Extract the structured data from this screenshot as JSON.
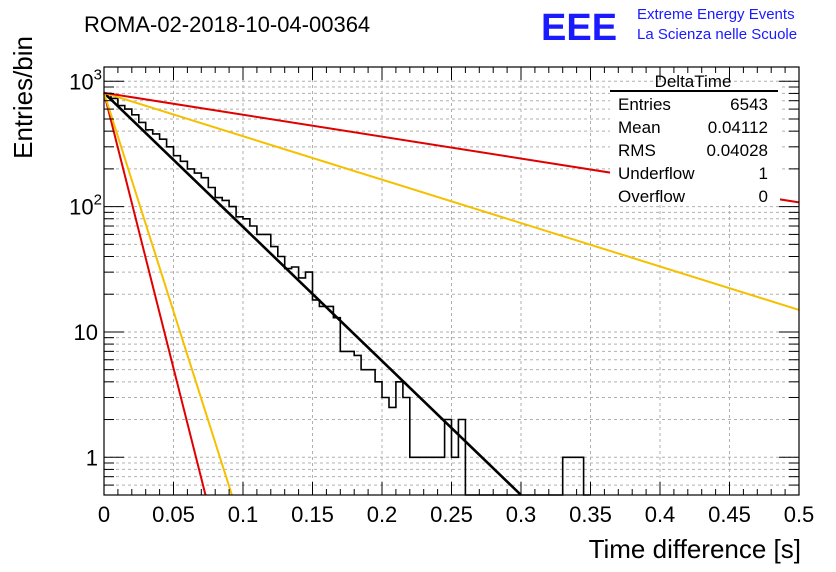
{
  "chart_data": {
    "type": "line",
    "title": "ROMA-02-2018-10-04-00364",
    "xlabel": "Time difference [s]",
    "ylabel": "Entries/bin",
    "xlim": [
      0,
      0.5
    ],
    "ylim": [
      0.5,
      1300
    ],
    "yscale": "log",
    "grid": true,
    "x_ticks": [
      "0",
      "0.05",
      "0.1",
      "0.15",
      "0.2",
      "0.25",
      "0.3",
      "0.35",
      "0.4",
      "0.45",
      "0.5"
    ],
    "y_ticks": [
      {
        "value": 1,
        "base": "1",
        "exp": ""
      },
      {
        "value": 10,
        "base": "10",
        "exp": ""
      },
      {
        "value": 100,
        "base": "10",
        "exp": "2"
      },
      {
        "value": 1000,
        "base": "10",
        "exp": "3"
      }
    ],
    "histogram": {
      "name": "DeltaTime",
      "bin_width": 0.005,
      "x_start": 0,
      "contents": [
        800,
        730,
        640,
        600,
        540,
        470,
        410,
        380,
        345,
        300,
        255,
        230,
        200,
        185,
        170,
        142,
        118,
        112,
        100,
        83,
        80,
        70,
        60,
        60,
        48,
        40,
        32,
        33,
        27,
        30,
        18,
        16,
        16,
        13,
        7,
        7,
        6.5,
        5,
        5,
        4,
        3,
        2.5,
        4,
        3,
        1,
        1,
        1,
        1,
        1,
        2,
        1,
        2,
        0,
        0,
        0,
        0,
        0,
        0,
        0,
        0,
        0,
        0,
        0,
        0,
        0,
        0,
        1,
        1,
        1,
        0
      ]
    },
    "series": [
      {
        "name": "fit",
        "color": "#000000",
        "x": [
          0,
          0.3
        ],
        "y": [
          810,
          0.5
        ]
      },
      {
        "name": "red-steep",
        "color": "#e00000",
        "x": [
          0,
          0.073
        ],
        "y": [
          810,
          0.5
        ]
      },
      {
        "name": "yellow-steep",
        "color": "#f5c000",
        "x": [
          0,
          0.092
        ],
        "y": [
          810,
          0.5
        ]
      },
      {
        "name": "yellow-shallow",
        "color": "#f5c000",
        "x": [
          0,
          0.5
        ],
        "y": [
          810,
          15
        ]
      },
      {
        "name": "red-shallow",
        "color": "#e00000",
        "x": [
          0,
          0.5
        ],
        "y": [
          810,
          108
        ]
      }
    ]
  },
  "logo": {
    "mark": "EEE",
    "line1": "Extreme Energy Events",
    "line2": "La Scienza nelle Scuole"
  },
  "stats": {
    "name": "DeltaTime",
    "rows": [
      {
        "label": "Entries",
        "value": "6543"
      },
      {
        "label": "Mean",
        "value": "0.04112"
      },
      {
        "label": "RMS",
        "value": "0.04028"
      },
      {
        "label": "Underflow",
        "value": "1"
      },
      {
        "label": "Overflow",
        "value": "0"
      }
    ]
  }
}
